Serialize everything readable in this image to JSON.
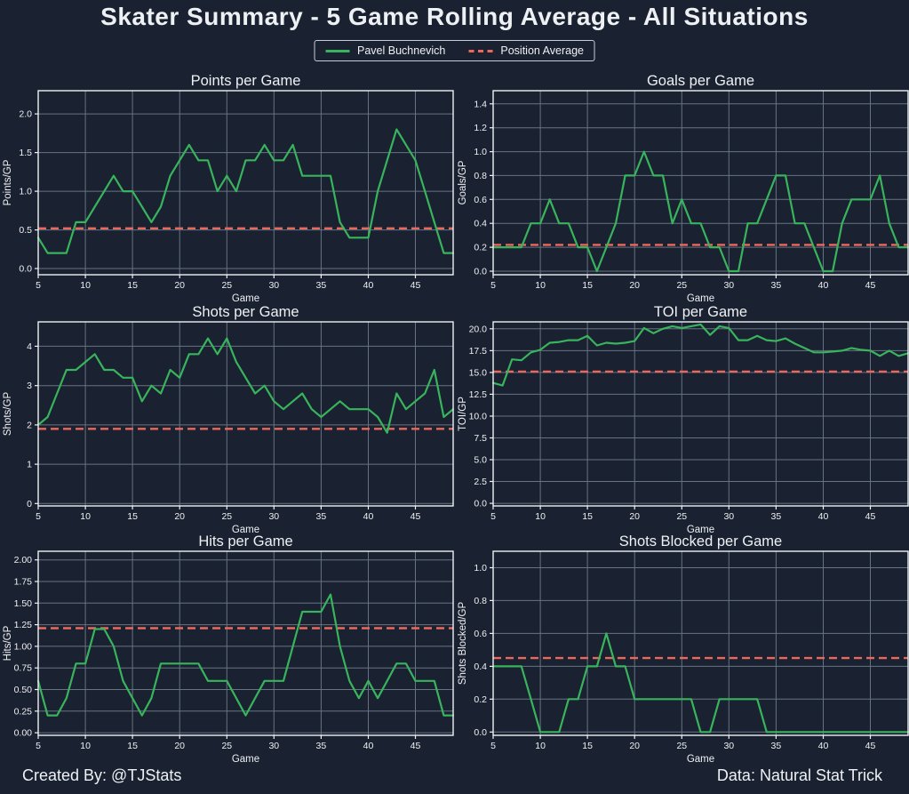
{
  "page": {
    "title": "Skater Summary - 5 Game Rolling Average - All Situations",
    "footer_left": "Created By: @TJStats",
    "footer_right": "Data: Natural Stat Trick"
  },
  "legend": {
    "player_label": "Pavel Buchnevich",
    "average_label": "Position Average",
    "player_color": "#38b45c",
    "average_color": "#ed685c"
  },
  "colors": {
    "background": "#1a2130",
    "text": "#eef1f4",
    "grid": "#8fa0ae",
    "spine": "#eef2f5"
  },
  "chart_data": [
    {
      "type": "line",
      "title": "Points per Game",
      "xlabel": "Game",
      "ylabel": "Points/GP",
      "x_start": 5,
      "x_end": 49,
      "xlim": [
        5,
        49
      ],
      "ylim": [
        -0.08,
        2.3
      ],
      "xticks": [
        5,
        10,
        15,
        20,
        25,
        30,
        35,
        40,
        45
      ],
      "ytick_values": [
        0,
        0.5,
        1.0,
        1.5,
        2.0
      ],
      "ytick_labels": [
        "0.0",
        "0.5",
        "1.0",
        "1.5",
        "2.0"
      ],
      "grid": true,
      "position_average": 0.52,
      "series": [
        {
          "name": "Pavel Buchnevich",
          "values": [
            0.4,
            0.2,
            0.2,
            0.2,
            0.6,
            0.6,
            0.8,
            1.0,
            1.2,
            1.0,
            1.0,
            0.8,
            0.6,
            0.8,
            1.2,
            1.4,
            1.6,
            1.4,
            1.4,
            1.0,
            1.2,
            1.0,
            1.4,
            1.4,
            1.6,
            1.4,
            1.4,
            1.6,
            1.2,
            1.2,
            1.2,
            1.2,
            0.6,
            0.4,
            0.4,
            0.4,
            1.0,
            1.4,
            1.8,
            1.6,
            1.4,
            1.0,
            0.6,
            0.2,
            0.2
          ]
        }
      ]
    },
    {
      "type": "line",
      "title": "Goals per Game",
      "xlabel": "Game",
      "ylabel": "Goals/GP",
      "x_start": 5,
      "x_end": 49,
      "xlim": [
        5,
        49
      ],
      "ylim": [
        -0.03,
        1.51
      ],
      "xticks": [
        5,
        10,
        15,
        20,
        25,
        30,
        35,
        40,
        45
      ],
      "ytick_values": [
        0,
        0.2,
        0.4,
        0.6,
        0.8,
        1.0,
        1.2,
        1.4
      ],
      "ytick_labels": [
        "0.0",
        "0.2",
        "0.4",
        "0.6",
        "0.8",
        "1.0",
        "1.2",
        "1.4"
      ],
      "grid": true,
      "position_average": 0.22,
      "series": [
        {
          "name": "Pavel Buchnevich",
          "values": [
            0.2,
            0.2,
            0.2,
            0.2,
            0.4,
            0.4,
            0.6,
            0.4,
            0.4,
            0.2,
            0.2,
            0.0,
            0.2,
            0.4,
            0.8,
            0.8,
            1.0,
            0.8,
            0.8,
            0.4,
            0.6,
            0.4,
            0.4,
            0.2,
            0.2,
            0.0,
            0.0,
            0.4,
            0.4,
            0.6,
            0.8,
            0.8,
            0.4,
            0.4,
            0.2,
            0.0,
            0.0,
            0.4,
            0.6,
            0.6,
            0.6,
            0.8,
            0.4,
            0.2,
            0.2
          ]
        }
      ]
    },
    {
      "type": "line",
      "title": "Shots per Game",
      "xlabel": "Game",
      "ylabel": "Shots/GP",
      "x_start": 5,
      "x_end": 49,
      "xlim": [
        5,
        49
      ],
      "ylim": [
        -0.06,
        4.62
      ],
      "xticks": [
        5,
        10,
        15,
        20,
        25,
        30,
        35,
        40,
        45
      ],
      "ytick_values": [
        0,
        1,
        2,
        3,
        4
      ],
      "ytick_labels": [
        "0",
        "1",
        "2",
        "3",
        "4"
      ],
      "grid": true,
      "position_average": 1.9,
      "series": [
        {
          "name": "Pavel Buchnevich",
          "values": [
            2.0,
            2.2,
            2.8,
            3.4,
            3.4,
            3.6,
            3.8,
            3.4,
            3.4,
            3.2,
            3.2,
            2.6,
            3.0,
            2.8,
            3.4,
            3.2,
            3.8,
            3.8,
            4.2,
            3.8,
            4.2,
            3.6,
            3.2,
            2.8,
            3.0,
            2.6,
            2.4,
            2.6,
            2.8,
            2.4,
            2.2,
            2.4,
            2.6,
            2.4,
            2.4,
            2.4,
            2.2,
            1.8,
            2.8,
            2.4,
            2.6,
            2.8,
            3.4,
            2.2,
            2.4
          ]
        }
      ]
    },
    {
      "type": "line",
      "title": "TOI per Game",
      "xlabel": "Game",
      "ylabel": "TOI/GP",
      "x_start": 5,
      "x_end": 49,
      "xlim": [
        5,
        49
      ],
      "ylim": [
        -0.3,
        20.8
      ],
      "xticks": [
        5,
        10,
        15,
        20,
        25,
        30,
        35,
        40,
        45
      ],
      "ytick_values": [
        0,
        2.5,
        5,
        7.5,
        10,
        12.5,
        15,
        17.5,
        20
      ],
      "ytick_labels": [
        "0.0",
        "2.5",
        "5.0",
        "7.5",
        "10.0",
        "12.5",
        "15.0",
        "17.5",
        "20.0"
      ],
      "grid": true,
      "position_average": 15.1,
      "series": [
        {
          "name": "Pavel Buchnevich",
          "values": [
            13.8,
            13.5,
            16.5,
            16.4,
            17.3,
            17.6,
            18.4,
            18.5,
            18.7,
            18.7,
            19.2,
            18.1,
            18.4,
            18.3,
            18.4,
            18.6,
            20.1,
            19.5,
            20.0,
            20.3,
            20.1,
            20.3,
            20.5,
            19.3,
            20.3,
            20.1,
            18.7,
            18.7,
            19.2,
            18.7,
            18.6,
            18.9,
            18.3,
            17.8,
            17.3,
            17.3,
            17.4,
            17.5,
            17.8,
            17.6,
            17.5,
            16.9,
            17.5,
            16.9,
            17.2
          ]
        }
      ]
    },
    {
      "type": "line",
      "title": "Hits per Game",
      "xlabel": "Game",
      "ylabel": "Hits/GP",
      "x_start": 5,
      "x_end": 49,
      "xlim": [
        5,
        49
      ],
      "ylim": [
        -0.03,
        2.1
      ],
      "xticks": [
        5,
        10,
        15,
        20,
        25,
        30,
        35,
        40,
        45
      ],
      "ytick_values": [
        0,
        0.25,
        0.5,
        0.75,
        1.0,
        1.25,
        1.5,
        1.75,
        2.0
      ],
      "ytick_labels": [
        "0.00",
        "0.25",
        "0.50",
        "0.75",
        "1.00",
        "1.25",
        "1.50",
        "1.75",
        "2.00"
      ],
      "grid": true,
      "position_average": 1.21,
      "series": [
        {
          "name": "Pavel Buchnevich",
          "values": [
            0.6,
            0.2,
            0.2,
            0.4,
            0.8,
            0.8,
            1.2,
            1.2,
            1.0,
            0.6,
            0.4,
            0.2,
            0.4,
            0.8,
            0.8,
            0.8,
            0.8,
            0.8,
            0.6,
            0.6,
            0.6,
            0.4,
            0.2,
            0.4,
            0.6,
            0.6,
            0.6,
            1.0,
            1.4,
            1.4,
            1.4,
            1.6,
            1.0,
            0.6,
            0.4,
            0.6,
            0.4,
            0.6,
            0.8,
            0.8,
            0.6,
            0.6,
            0.6,
            0.2,
            0.2
          ]
        }
      ]
    },
    {
      "type": "line",
      "title": "Shots Blocked per Game",
      "xlabel": "Game",
      "ylabel": "Shots Blocked/GP",
      "x_start": 5,
      "x_end": 49,
      "xlim": [
        5,
        49
      ],
      "ylim": [
        -0.02,
        1.1
      ],
      "xticks": [
        5,
        10,
        15,
        20,
        25,
        30,
        35,
        40,
        45
      ],
      "ytick_values": [
        0,
        0.2,
        0.4,
        0.6,
        0.8,
        1.0
      ],
      "ytick_labels": [
        "0.0",
        "0.2",
        "0.4",
        "0.6",
        "0.8",
        "1.0"
      ],
      "grid": true,
      "position_average": 0.45,
      "series": [
        {
          "name": "Pavel Buchnevich",
          "values": [
            0.4,
            0.4,
            0.4,
            0.4,
            0.2,
            0.0,
            0.0,
            0.0,
            0.2,
            0.2,
            0.4,
            0.4,
            0.6,
            0.4,
            0.4,
            0.2,
            0.2,
            0.2,
            0.2,
            0.2,
            0.2,
            0.2,
            0.0,
            0.0,
            0.2,
            0.2,
            0.2,
            0.2,
            0.2,
            0.0,
            0.0,
            0.0,
            0.0,
            0.0,
            0.0,
            0.0,
            0.0,
            0.0,
            0.0,
            0.0,
            0.0,
            0.0,
            0.0,
            0.0,
            0.0
          ]
        }
      ]
    }
  ]
}
